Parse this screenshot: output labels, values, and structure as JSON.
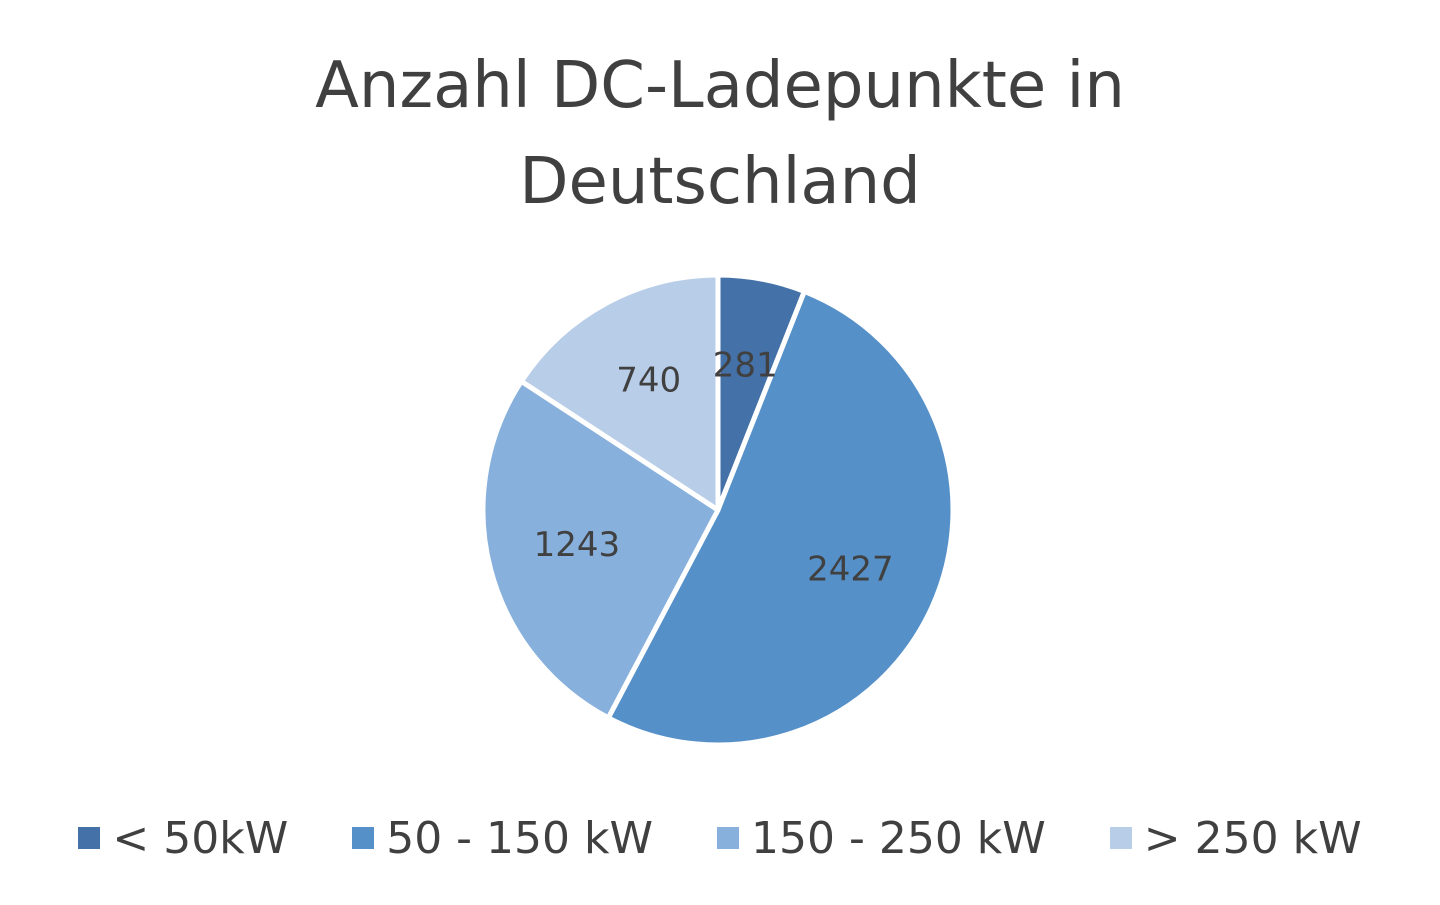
{
  "chart_data": {
    "type": "pie",
    "title_lines": [
      "Anzahl DC-Ladepunkte in",
      "Deutschland"
    ],
    "categories": [
      "< 50kW",
      "50 - 150 kW",
      "150 - 250 kW",
      "> 250 kW"
    ],
    "values": [
      281,
      2427,
      1243,
      740
    ],
    "data_labels": [
      "281",
      "2427",
      "1243",
      "740"
    ],
    "colors": [
      "#4472a8",
      "#5590c8",
      "#88b0dc",
      "#b8cde8"
    ],
    "start_angle_deg": 0,
    "direction": "clockwise",
    "legend_position": "bottom"
  }
}
